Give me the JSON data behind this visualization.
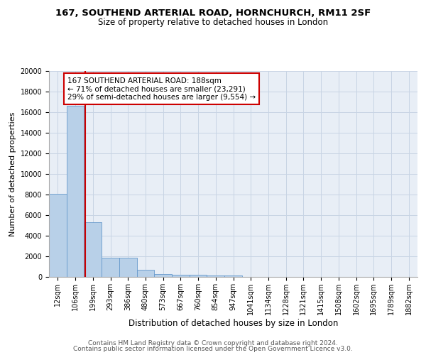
{
  "title1": "167, SOUTHEND ARTERIAL ROAD, HORNCHURCH, RM11 2SF",
  "title2": "Size of property relative to detached houses in London",
  "xlabel": "Distribution of detached houses by size in London",
  "ylabel": "Number of detached properties",
  "bin_labels": [
    "12sqm",
    "106sqm",
    "199sqm",
    "293sqm",
    "386sqm",
    "480sqm",
    "573sqm",
    "667sqm",
    "760sqm",
    "854sqm",
    "947sqm",
    "1041sqm",
    "1134sqm",
    "1228sqm",
    "1321sqm",
    "1415sqm",
    "1508sqm",
    "1602sqm",
    "1695sqm",
    "1789sqm",
    "1882sqm"
  ],
  "bar_heights": [
    8100,
    16600,
    5300,
    1850,
    1850,
    700,
    300,
    220,
    180,
    170,
    130,
    0,
    0,
    0,
    0,
    0,
    0,
    0,
    0,
    0,
    0
  ],
  "bar_color": "#b8d0e8",
  "bar_edge_color": "#6699cc",
  "grid_color": "#c8d4e4",
  "background_color": "#e8eef6",
  "vline_color": "#cc0000",
  "annotation_text": "167 SOUTHEND ARTERIAL ROAD: 188sqm\n← 71% of detached houses are smaller (23,291)\n29% of semi-detached houses are larger (9,554) →",
  "annotation_box_color": "#ffffff",
  "annotation_box_edge": "#cc0000",
  "ylim": [
    0,
    20000
  ],
  "yticks": [
    0,
    2000,
    4000,
    6000,
    8000,
    10000,
    12000,
    14000,
    16000,
    18000,
    20000
  ],
  "footer_line1": "Contains HM Land Registry data © Crown copyright and database right 2024.",
  "footer_line2": "Contains public sector information licensed under the Open Government Licence v3.0.",
  "title1_fontsize": 9.5,
  "title2_fontsize": 8.5,
  "xlabel_fontsize": 8.5,
  "ylabel_fontsize": 8,
  "tick_fontsize": 7,
  "annotation_fontsize": 7.5,
  "footer_fontsize": 6.5
}
